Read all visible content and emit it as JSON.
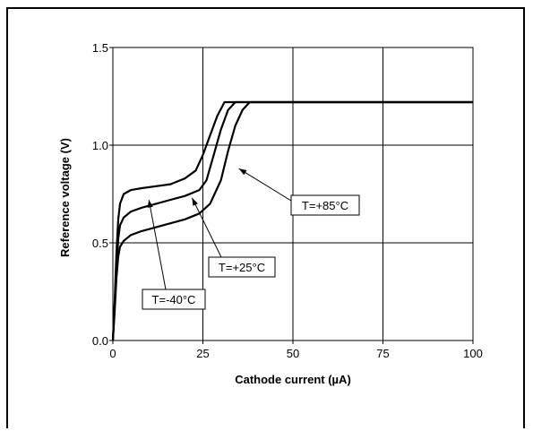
{
  "chart_data": {
    "type": "line",
    "xlabel": "Cathode current (µA)",
    "ylabel": "Reference voltage (V)",
    "xlim": [
      0,
      100
    ],
    "ylim": [
      0,
      1.5
    ],
    "x_ticks": [
      "0",
      "25",
      "50",
      "75",
      "100"
    ],
    "y_ticks": [
      "0.0",
      "0.5",
      "1.0",
      "1.5"
    ],
    "grid": true,
    "series": [
      {
        "name": "T=-40°C",
        "points": [
          [
            0,
            0
          ],
          [
            0.5,
            0.2
          ],
          [
            1,
            0.45
          ],
          [
            1.5,
            0.62
          ],
          [
            2,
            0.7
          ],
          [
            3,
            0.75
          ],
          [
            5,
            0.77
          ],
          [
            8,
            0.78
          ],
          [
            12,
            0.79
          ],
          [
            16,
            0.8
          ],
          [
            20,
            0.83
          ],
          [
            23,
            0.87
          ],
          [
            25,
            0.95
          ],
          [
            27,
            1.05
          ],
          [
            29,
            1.15
          ],
          [
            31,
            1.22
          ],
          [
            35,
            1.22
          ],
          [
            50,
            1.22
          ],
          [
            75,
            1.22
          ],
          [
            100,
            1.22
          ]
        ]
      },
      {
        "name": "T=+25°C",
        "points": [
          [
            0,
            0
          ],
          [
            0.5,
            0.18
          ],
          [
            1,
            0.38
          ],
          [
            1.5,
            0.52
          ],
          [
            2,
            0.59
          ],
          [
            3,
            0.63
          ],
          [
            5,
            0.66
          ],
          [
            8,
            0.68
          ],
          [
            12,
            0.7
          ],
          [
            16,
            0.72
          ],
          [
            20,
            0.74
          ],
          [
            24,
            0.77
          ],
          [
            26,
            0.82
          ],
          [
            28,
            0.95
          ],
          [
            30,
            1.08
          ],
          [
            32,
            1.18
          ],
          [
            34,
            1.22
          ],
          [
            40,
            1.22
          ],
          [
            50,
            1.22
          ],
          [
            75,
            1.22
          ],
          [
            100,
            1.22
          ]
        ]
      },
      {
        "name": "T=+85°C",
        "points": [
          [
            0,
            0
          ],
          [
            0.5,
            0.15
          ],
          [
            1,
            0.32
          ],
          [
            1.5,
            0.43
          ],
          [
            2,
            0.48
          ],
          [
            3,
            0.51
          ],
          [
            5,
            0.54
          ],
          [
            8,
            0.56
          ],
          [
            12,
            0.58
          ],
          [
            16,
            0.6
          ],
          [
            20,
            0.62
          ],
          [
            24,
            0.65
          ],
          [
            27,
            0.7
          ],
          [
            30,
            0.82
          ],
          [
            32,
            0.97
          ],
          [
            34,
            1.1
          ],
          [
            36,
            1.18
          ],
          [
            38,
            1.22
          ],
          [
            45,
            1.22
          ],
          [
            50,
            1.22
          ],
          [
            75,
            1.22
          ],
          [
            100,
            1.22
          ]
        ]
      }
    ],
    "annotations": [
      {
        "text": "T=-40°C",
        "series": "T=-40°C",
        "target": [
          10,
          0.72
        ]
      },
      {
        "text": "T=+25°C",
        "series": "T=+25°C",
        "target": [
          22,
          0.73
        ]
      },
      {
        "text": "T=+85°C",
        "series": "T=+85°C",
        "target": [
          35,
          0.88
        ]
      }
    ]
  }
}
